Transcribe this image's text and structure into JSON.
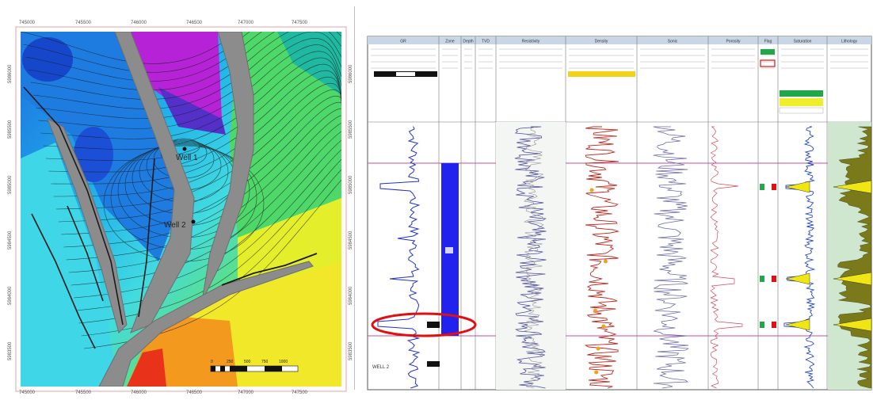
{
  "map": {
    "top_ticks": [
      "745000",
      "745500",
      "746000",
      "746500",
      "747000",
      "747500"
    ],
    "bottom_ticks": [
      "745000",
      "745500",
      "746000",
      "746500",
      "747000",
      "747500"
    ],
    "left_ticks": [
      "5986000",
      "5985500",
      "5985000",
      "5984500",
      "5984000",
      "5983500"
    ],
    "right_ticks": [
      "5986000",
      "5985500",
      "5985000",
      "5984500",
      "5984000",
      "5983500"
    ],
    "well_labels": [
      "Well 1",
      "Well 2"
    ],
    "scale_bar": {
      "labels": [
        "0",
        "250",
        "500",
        "750",
        "1000"
      ]
    },
    "colors": {
      "deep": "#1a3fbf",
      "mid": "#1c9fe0",
      "cyan": "#3fd4e8",
      "green": "#4fd87a",
      "yellow": "#f0ee2a",
      "orange": "#f39a1f",
      "red": "#e8321a",
      "magenta": "#c21fd9",
      "fault_fill": "#8c8c8c"
    }
  },
  "log": {
    "track_headers": [
      "GR",
      "Zone",
      "Depth",
      "TVD",
      "Resistivity",
      "Density",
      "Sonic",
      "Porosity",
      "Flag",
      "Saturation",
      "Lithology"
    ],
    "bottom_label": "WELL 2",
    "highlight_color": "#e01010",
    "curve_colors": {
      "gr": "#2233cc",
      "density": "#c0281e",
      "sonic": "#6a6ab0",
      "porosity": "#d8485a",
      "fill_yellow": "#f0e614",
      "shale": "#7a7a1a",
      "zone_bar": "#2222ee"
    }
  }
}
